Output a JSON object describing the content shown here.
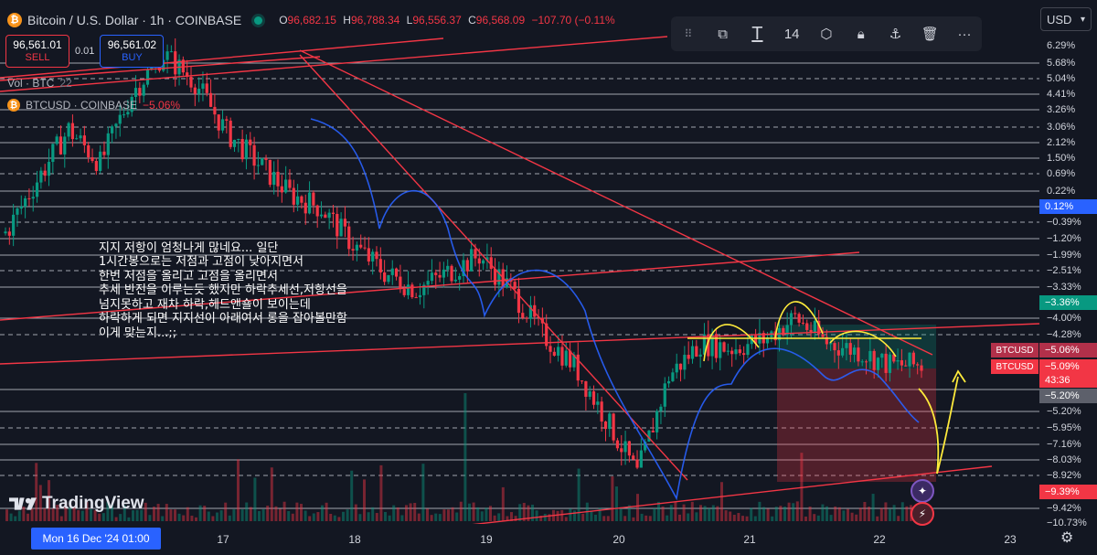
{
  "header": {
    "title": "Bitcoin / U.S. Dollar · 1h · COINBASE",
    "open_label": "O",
    "open": "96,682.15",
    "high_label": "H",
    "high": "96,788.34",
    "low_label": "L",
    "low": "96,556.37",
    "close_label": "C",
    "close": "96,568.09",
    "change": "−107.70 (−0.11%"
  },
  "trade": {
    "sell_price": "96,561.01",
    "sell_label": "SELL",
    "spread": "0.01",
    "buy_price": "96,561.02",
    "buy_label": "BUY"
  },
  "legend": {
    "vol_label": "Vol · BTC",
    "vol_value": "22",
    "compare_label": "BTCUSD · COINBASE",
    "compare_value": "−5.06%"
  },
  "toolbar": {
    "font_size": "14"
  },
  "currency": "USD",
  "colors": {
    "up": "#089981",
    "down": "#f23645",
    "accent": "#2962ff",
    "bg": "#131722"
  },
  "axis": {
    "ticks": [
      "6.29%",
      "5.68%",
      "5.04%",
      "4.41%",
      "3.26%",
      "3.06%",
      "2.12%",
      "1.50%",
      "0.69%",
      "0.22%",
      "−0.39%",
      "−1.20%",
      "−1.99%",
      "−2.51%",
      "−3.33%",
      "−4.00%",
      "−4.28%",
      "−5.20%",
      "−5.95%",
      "−7.16%",
      "−8.03%",
      "−8.92%",
      "−9.42%",
      "−10.73%"
    ],
    "tags": {
      "blue": "0.12%",
      "green": "−3.36%",
      "sym1_label": "BTCUSD",
      "sym1_value": "−5.06%",
      "sym2_label": "BTCUSD",
      "sym2_value": "−5.09%",
      "countdown": "43:36",
      "gray": "−5.20%",
      "red": "−9.39%"
    }
  },
  "xaxis": {
    "current": "Mon 16 Dec '24   01:00",
    "labels": [
      "17",
      "18",
      "19",
      "20",
      "21",
      "22",
      "23"
    ]
  },
  "note": {
    "lines": [
      "지지 저항이 엄청나게 많네요... 일단",
      "1시간봉으로는 저점과 고점이 낮아지면서",
      "한번 저점을 올리고 고점을 올리면서",
      "추세 반전을 이루는듯 했지만 하락추세선,저항선을",
      "넘지못하고 재차 하락,헤드앤숄이 보이는데",
      "하락하게 되면 지지선이 아래여서 롱을 잡아볼만함",
      "이게 맞는지...;;"
    ]
  },
  "brand": "TradingView",
  "chart_data": {
    "type": "candlestick",
    "symbol": "BTCUSD",
    "interval": "1h",
    "scale": "percent",
    "x": [
      "17",
      "18",
      "19",
      "20",
      "21",
      "22",
      "23"
    ],
    "ylim": [
      -10.73,
      6.29
    ],
    "close_path_percent": [
      -0.4,
      1.5,
      3.3,
      2.1,
      4.6,
      6.0,
      5.0,
      3.2,
      2.1,
      1.0,
      0.5,
      -0.8,
      -1.8,
      -2.4,
      -1.8,
      -1.2,
      -2.4,
      -4.0,
      -5.1,
      -7.0,
      -9.0,
      -5.5,
      -4.3,
      -4.5,
      -4.2,
      -3.4,
      -4.3,
      -4.6,
      -5.1,
      -5.1
    ]
  }
}
